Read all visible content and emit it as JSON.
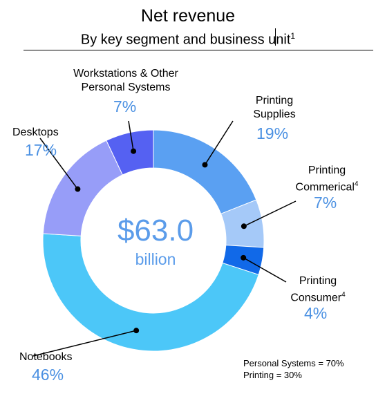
{
  "chart_data": {
    "type": "pie",
    "title": "Net revenue",
    "subtitle": "By key segment and business unit",
    "subtitle_footnote": "1",
    "center_value": "$63.0",
    "center_unit": "billion",
    "slices": [
      {
        "name": "Printing Supplies",
        "line1": "Printing",
        "line2": "Supplies",
        "sup": "",
        "value": 19,
        "label": "19%",
        "color": "#5aa0f2"
      },
      {
        "name": "Printing Commerical",
        "line1": "Printing",
        "line2": "Commerical",
        "sup": "4",
        "value": 7,
        "label": "7%",
        "color": "#a5c9f8"
      },
      {
        "name": "Printing Consumer",
        "line1": "Printing",
        "line2": "Consumer",
        "sup": "4",
        "value": 4,
        "label": "4%",
        "color": "#1169e8"
      },
      {
        "name": "Notebooks",
        "line1": "Notebooks",
        "line2": "",
        "sup": "",
        "value": 46,
        "label": "46%",
        "color": "#4cc7f8"
      },
      {
        "name": "Desktops",
        "line1": "Desktops",
        "line2": "",
        "sup": "",
        "value": 17,
        "label": "17%",
        "color": "#979df8"
      },
      {
        "name": "Workstations & Other Personal Systems",
        "line1": "Workstations & Other",
        "line2": "Personal Systems",
        "sup": "",
        "value": 7,
        "label": "7%",
        "color": "#5561f2"
      }
    ],
    "notes": [
      "Personal Systems = 70%",
      "Printing = 30%"
    ]
  }
}
